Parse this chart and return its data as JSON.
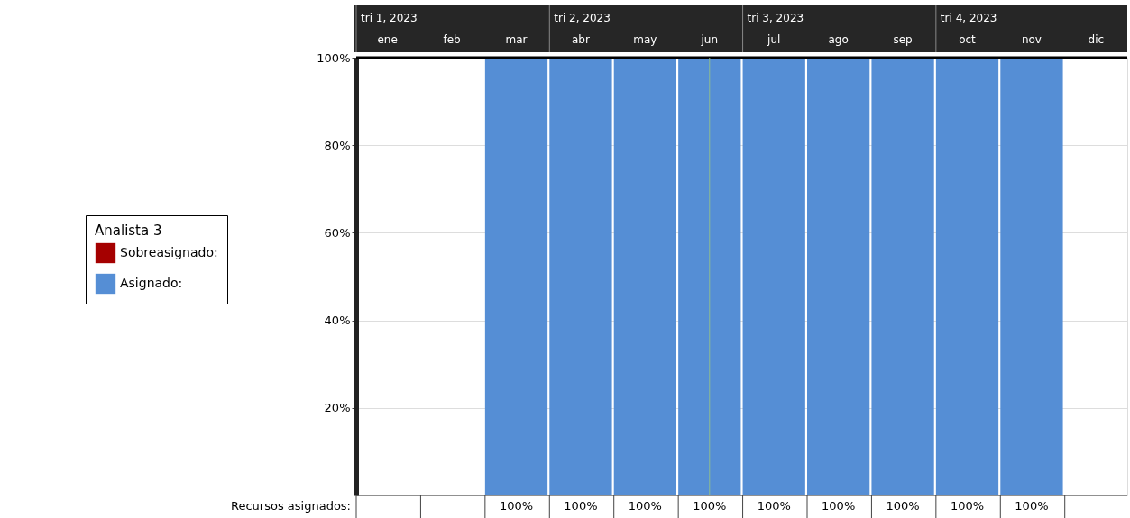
{
  "chart_data": {
    "type": "bar",
    "legend_title": "Analista 3",
    "legend": "left",
    "grid": "y",
    "categories": [
      "ene",
      "feb",
      "mar",
      "abr",
      "may",
      "jun",
      "jul",
      "ago",
      "sep",
      "oct",
      "nov",
      "dic"
    ],
    "series": [
      {
        "name": "Sobreasignado:",
        "color": "#a50000",
        "values": [
          null,
          null,
          null,
          null,
          null,
          null,
          null,
          null,
          null,
          null,
          null,
          null
        ]
      },
      {
        "name": "Asignado:",
        "color": "#558ed5",
        "values": [
          null,
          null,
          100,
          100,
          100,
          100,
          100,
          100,
          100,
          100,
          100,
          null
        ],
        "value_labels": [
          null,
          null,
          "100%",
          "100%",
          "100%",
          "100%",
          "100%",
          "100%",
          "100%",
          "100%",
          "100%",
          null
        ]
      }
    ],
    "ylim": [
      0,
      100
    ],
    "yticks": [
      {
        "value": 20,
        "label": "20%"
      },
      {
        "value": 40,
        "label": "40%"
      },
      {
        "value": 60,
        "label": "60%"
      },
      {
        "value": 80,
        "label": "80%"
      },
      {
        "value": 100,
        "label": "100%"
      }
    ],
    "ref_lines": [
      {
        "axis": "x",
        "value": "jun",
        "color": "#8fbc8f"
      }
    ],
    "annotations": [
      "tri 1, 2023",
      "tri 2, 2023",
      "tri 3, 2023",
      "tri 4, 2023",
      "Recursos asignados:"
    ]
  }
}
